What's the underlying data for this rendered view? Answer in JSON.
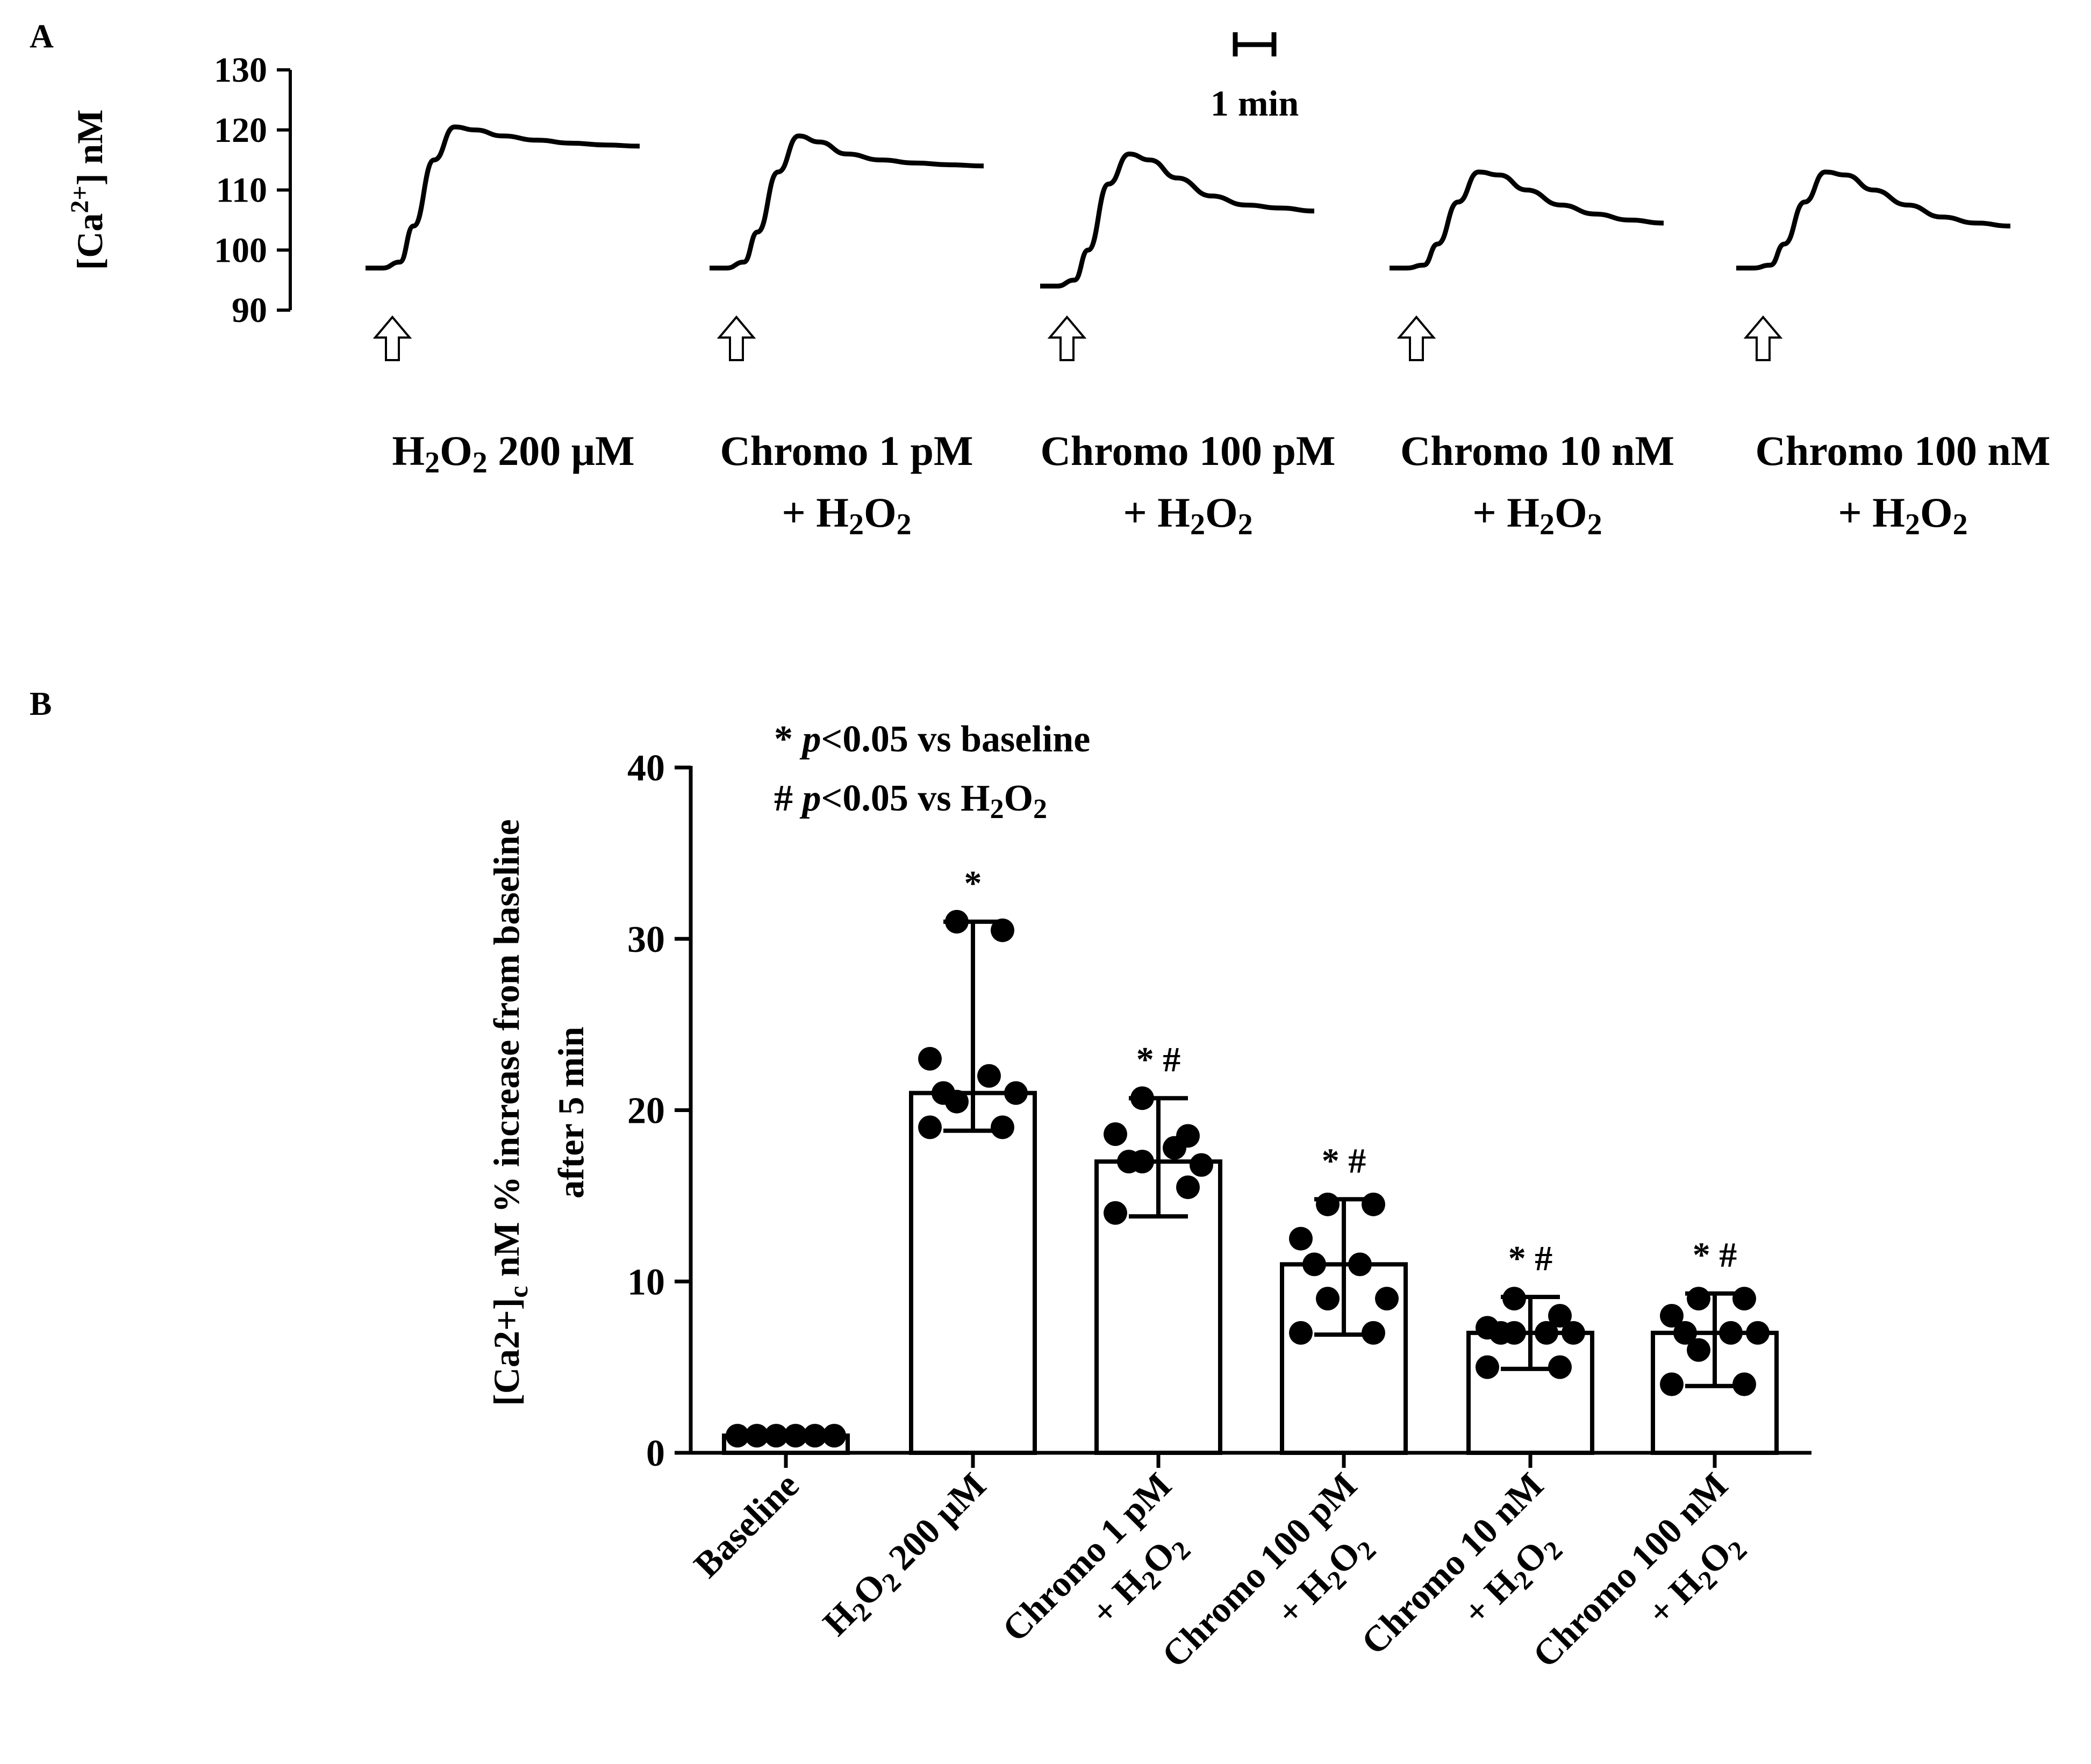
{
  "panel_labels": {
    "a": "A",
    "b": "B"
  },
  "chart_data": [
    {
      "type": "line",
      "panel": "A",
      "ylabel": "[Ca2+] nM",
      "ylabel_parts": {
        "prefix": "[Ca",
        "sup": "2+",
        "suffix": "] nM"
      },
      "ylim": [
        90,
        130
      ],
      "yticks": [
        90,
        100,
        110,
        120,
        130
      ],
      "scale_bar_label": "1 min",
      "stimulus_marker": "open-arrow",
      "x_units": "min",
      "series": [
        {
          "name": "H2O2 200 μM",
          "label_lines": [
            [
              {
                "t": "H"
              },
              {
                "t": "2",
                "sub": true
              },
              {
                "t": "O"
              },
              {
                "t": "2",
                "sub": true
              },
              {
                "t": " 200 μM"
              }
            ]
          ],
          "x": [
            0,
            0.5,
            1.0,
            1.4,
            2.0,
            2.6,
            3.2,
            4.0,
            5.0,
            6.0,
            7.0,
            8.0
          ],
          "y": [
            97,
            97,
            98,
            104,
            115,
            120.5,
            120,
            119,
            118.3,
            117.8,
            117.5,
            117.3
          ]
        },
        {
          "name": "Chromo 1 pM + H2O2",
          "label_lines": [
            [
              {
                "t": "Chromo 1 pM"
              }
            ],
            [
              {
                "t": "+ H"
              },
              {
                "t": "2",
                "sub": true
              },
              {
                "t": "O"
              },
              {
                "t": "2",
                "sub": true
              }
            ]
          ],
          "x": [
            0,
            0.5,
            1.0,
            1.4,
            2.0,
            2.6,
            3.2,
            4.0,
            5.0,
            6.0,
            7.0,
            8.0
          ],
          "y": [
            97,
            97,
            98,
            103,
            113,
            119,
            118,
            116,
            115,
            114.5,
            114.2,
            114
          ]
        },
        {
          "name": "Chromo 100 pM + H2O2",
          "label_lines": [
            [
              {
                "t": "Chromo 100 pM"
              }
            ],
            [
              {
                "t": "+ H"
              },
              {
                "t": "2",
                "sub": true
              },
              {
                "t": "O"
              },
              {
                "t": "2",
                "sub": true
              }
            ]
          ],
          "x": [
            0,
            0.5,
            1.0,
            1.4,
            2.0,
            2.6,
            3.2,
            4.0,
            5.0,
            6.0,
            7.0,
            8.0
          ],
          "y": [
            94,
            94,
            95,
            100,
            111,
            116,
            115,
            112,
            109,
            107.5,
            107,
            106.5
          ]
        },
        {
          "name": "Chromo 10 nM + H2O2",
          "label_lines": [
            [
              {
                "t": "Chromo 10 nM"
              }
            ],
            [
              {
                "t": "+ H"
              },
              {
                "t": "2",
                "sub": true
              },
              {
                "t": "O"
              },
              {
                "t": "2",
                "sub": true
              }
            ]
          ],
          "x": [
            0,
            0.5,
            1.0,
            1.4,
            2.0,
            2.6,
            3.2,
            4.0,
            5.0,
            6.0,
            7.0,
            8.0
          ],
          "y": [
            97,
            97,
            97.5,
            101,
            108,
            113,
            112.5,
            110,
            107.5,
            106,
            105,
            104.5
          ]
        },
        {
          "name": "Chromo 100 nM + H2O2",
          "label_lines": [
            [
              {
                "t": "Chromo 100 nM"
              }
            ],
            [
              {
                "t": "+ H"
              },
              {
                "t": "2",
                "sub": true
              },
              {
                "t": "O"
              },
              {
                "t": "2",
                "sub": true
              }
            ]
          ],
          "x": [
            0,
            0.5,
            1.0,
            1.4,
            2.0,
            2.6,
            3.2,
            4.0,
            5.0,
            6.0,
            7.0,
            8.0
          ],
          "y": [
            97,
            97,
            97.5,
            101,
            108,
            113,
            112.5,
            110,
            107.5,
            105.5,
            104.5,
            104
          ]
        }
      ]
    },
    {
      "type": "bar",
      "panel": "B",
      "ylabel_line1": "[Ca2+]c nM % increase from baseline",
      "ylabel_parts": {
        "prefix": "[Ca2+]",
        "sub": "c",
        "suffix": " nM % increase from baseline"
      },
      "ylabel_line2": "after 5 min",
      "ylim": [
        0,
        40
      ],
      "yticks": [
        0,
        10,
        20,
        30,
        40
      ],
      "legend_note_1": {
        "symbol": "* ",
        "p": "p",
        "rest": "<0.05 vs baseline"
      },
      "legend_note_2": {
        "symbol": "# ",
        "p": "p",
        "rest": "<0.05 vs H2O2",
        "rest_parts": [
          {
            "t": "<0.05 vs H"
          },
          {
            "t": "2",
            "sub": true
          },
          {
            "t": "O"
          },
          {
            "t": "2",
            "sub": true
          }
        ]
      },
      "categories": [
        "Baseline",
        "H2O2 200 μM",
        "Chromo 1 pM + H2O2",
        "Chromo 100 pM + H2O2",
        "Chromo 10 nM + H2O2",
        "Chromo 100 nM + H2O2"
      ],
      "category_labels": [
        {
          "line1": [
            {
              "t": "Baseline"
            }
          ],
          "line2": []
        },
        {
          "line1": [
            {
              "t": "H"
            },
            {
              "t": "2",
              "sub": true
            },
            {
              "t": "O"
            },
            {
              "t": "2",
              "sub": true
            },
            {
              "t": " 200 μM"
            }
          ],
          "line2": []
        },
        {
          "line1": [
            {
              "t": "Chromo 1 pM"
            }
          ],
          "line2": [
            {
              "t": "+ H"
            },
            {
              "t": "2",
              "sub": true
            },
            {
              "t": "O"
            },
            {
              "t": "2",
              "sub": true
            }
          ]
        },
        {
          "line1": [
            {
              "t": "Chromo 100 pM"
            }
          ],
          "line2": [
            {
              "t": "+ H"
            },
            {
              "t": "2",
              "sub": true
            },
            {
              "t": "O"
            },
            {
              "t": "2",
              "sub": true
            }
          ]
        },
        {
          "line1": [
            {
              "t": "Chromo 10 nM"
            }
          ],
          "line2": [
            {
              "t": "+ H"
            },
            {
              "t": "2",
              "sub": true
            },
            {
              "t": "O"
            },
            {
              "t": "2",
              "sub": true
            }
          ]
        },
        {
          "line1": [
            {
              "t": "Chromo 100 nM"
            }
          ],
          "line2": [
            {
              "t": "+ H"
            },
            {
              "t": "2",
              "sub": true
            },
            {
              "t": "O"
            },
            {
              "t": "2",
              "sub": true
            }
          ]
        }
      ],
      "values": [
        1,
        21,
        17,
        11,
        7,
        7
      ],
      "error_low": [
        1,
        18.8,
        13.8,
        6.9,
        4.9,
        3.9
      ],
      "error_high": [
        1,
        31,
        20.7,
        14.8,
        9.1,
        9.3
      ],
      "annotations": [
        "",
        "*",
        "* #",
        "* #",
        "* #",
        "* #"
      ],
      "points": [
        [
          1,
          1,
          1,
          1,
          1,
          1
        ],
        [
          31,
          30.5,
          23,
          22,
          21,
          21,
          20.5,
          19,
          19
        ],
        [
          20.7,
          18.5,
          18.6,
          17.8,
          17,
          16.8,
          17,
          15.5,
          14
        ],
        [
          14.5,
          14.5,
          12.5,
          11,
          11,
          9,
          9,
          7,
          7
        ],
        [
          9,
          8,
          7.3,
          7,
          7,
          7,
          7,
          5,
          5
        ],
        [
          9,
          9,
          8,
          7,
          7,
          7,
          6,
          4,
          4
        ]
      ]
    }
  ]
}
